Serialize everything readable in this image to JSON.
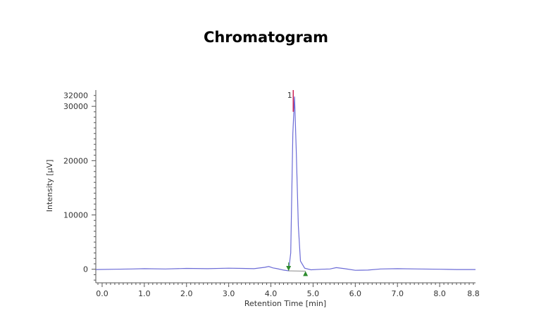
{
  "chart_data": {
    "type": "line",
    "title": "Chromatogram",
    "xlabel": "Retention Time [min]",
    "ylabel": "Intensity [μV]",
    "xlim": [
      -0.15,
      8.85
    ],
    "ylim": [
      -2500,
      33000
    ],
    "x_ticks": [
      0.0,
      1.0,
      2.0,
      3.0,
      4.0,
      5.0,
      6.0,
      7.0,
      8.0,
      8.8
    ],
    "x_tick_labels": [
      "0.0",
      "1.0",
      "2.0",
      "3.0",
      "4.0",
      "5.0",
      "6.0",
      "7.0",
      "8.0",
      "8.8"
    ],
    "y_ticks": [
      0,
      10000,
      20000,
      30000,
      32000
    ],
    "y_tick_labels": [
      "0",
      "10000",
      "20000",
      "30000",
      "32000"
    ],
    "series": [
      {
        "color": "#6b6bd6",
        "x": [
          -0.15,
          0.3,
          0.7,
          1.0,
          1.5,
          2.0,
          2.5,
          3.0,
          3.3,
          3.6,
          3.85,
          3.95,
          4.05,
          4.15,
          4.3,
          4.42,
          4.47,
          4.52,
          4.56,
          4.6,
          4.65,
          4.7,
          4.8,
          4.95,
          5.2,
          5.4,
          5.55,
          5.75,
          6.0,
          6.3,
          6.6,
          7.0,
          7.5,
          8.0,
          8.4,
          8.85
        ],
        "y": [
          -50,
          0,
          50,
          100,
          50,
          150,
          100,
          200,
          150,
          100,
          350,
          500,
          250,
          100,
          -150,
          -300,
          3000,
          25000,
          31800,
          22000,
          8000,
          1500,
          200,
          -100,
          0,
          50,
          300,
          100,
          -200,
          -150,
          50,
          100,
          50,
          0,
          -50,
          -50
        ]
      }
    ],
    "annotations": [
      {
        "text": "1",
        "x": 4.53,
        "y": 32200
      },
      {
        "type": "marker-down",
        "x": 4.42,
        "y": -300,
        "color": "#2e8b2e"
      },
      {
        "type": "marker-up",
        "x": 4.82,
        "y": -350,
        "color": "#2e8b2e"
      }
    ],
    "baseline": {
      "x": [
        4.42,
        4.82
      ],
      "y": [
        -300,
        -350
      ],
      "color": "#8a8a8a"
    },
    "peak_marker": {
      "x": 4.53,
      "y_from": 29000,
      "y_to": 33000,
      "color": "#cc2255"
    },
    "grid": false
  }
}
